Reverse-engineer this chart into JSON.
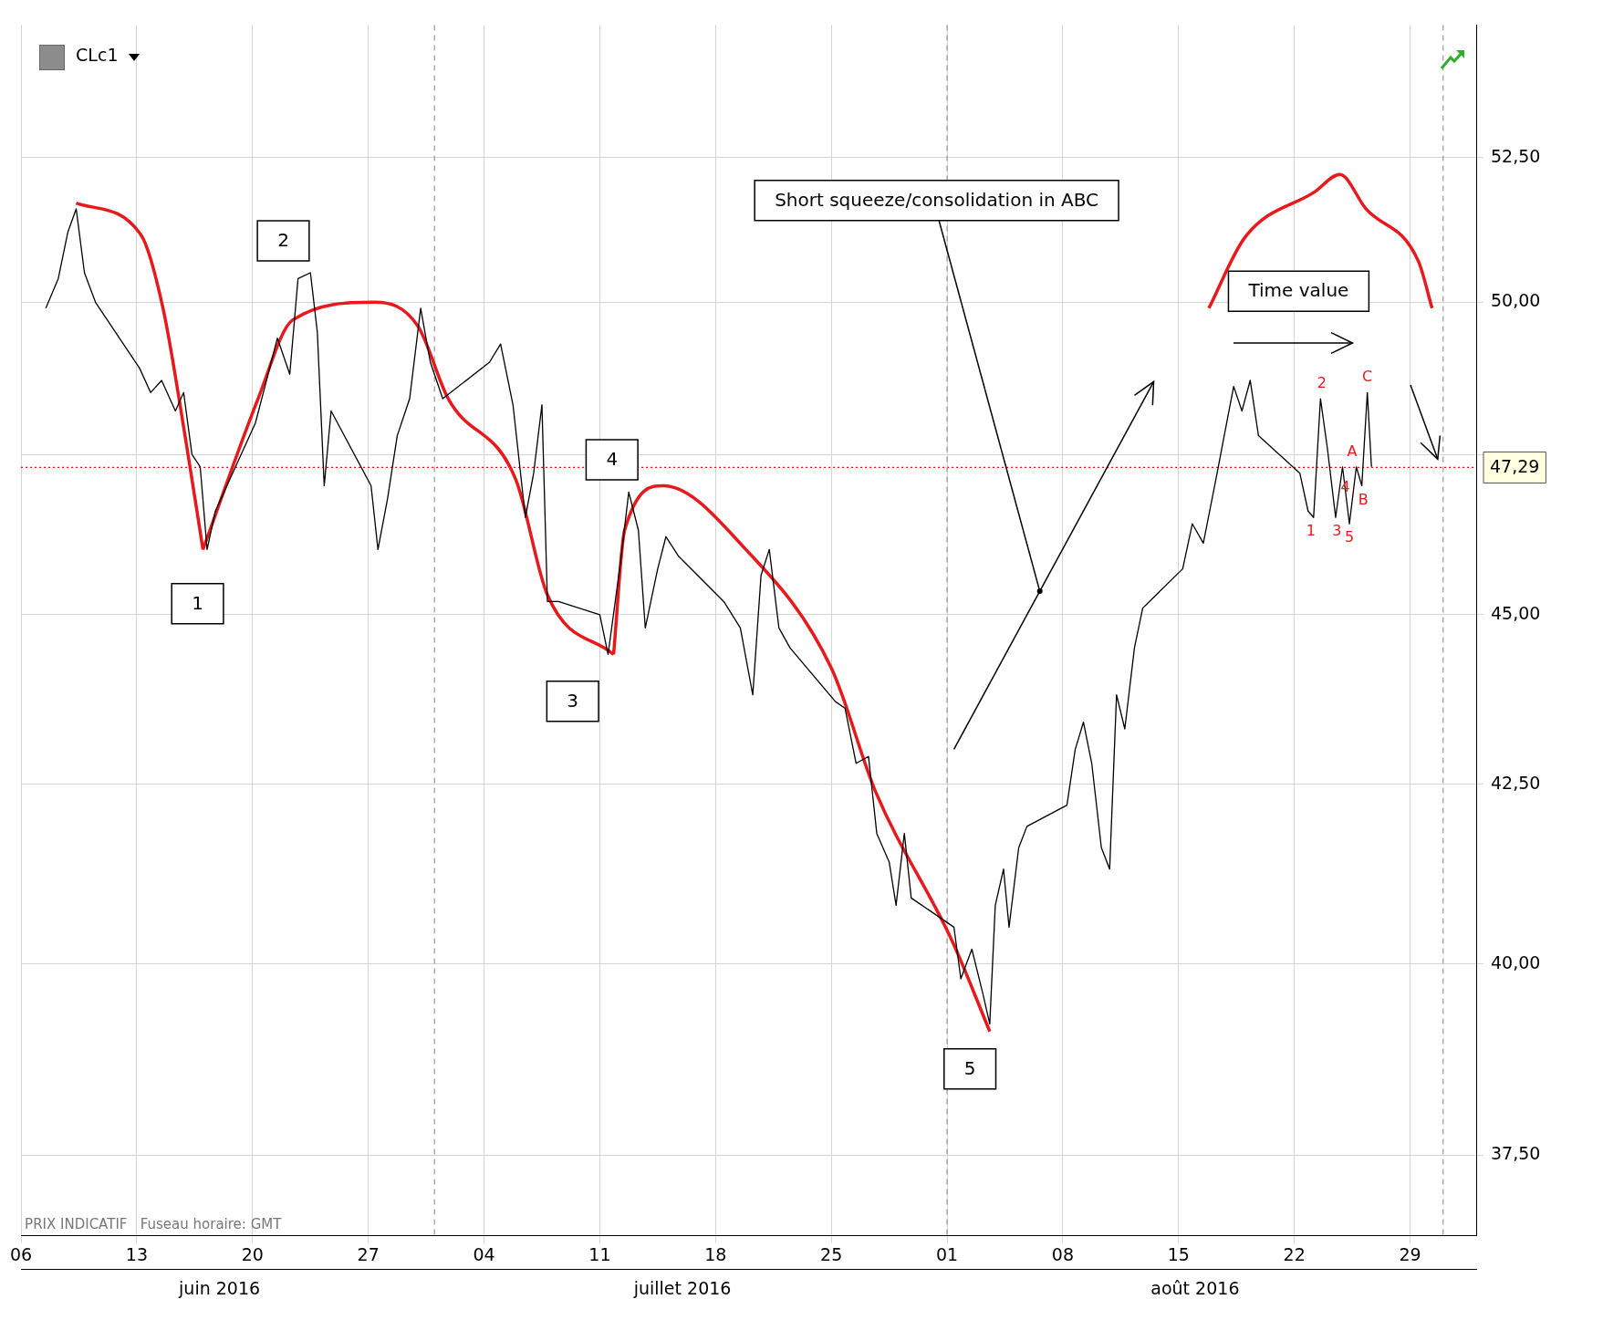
{
  "chart_data": {
    "type": "line",
    "title": "CLc1",
    "xlim": [
      "2016-06-06",
      "2016-09-02"
    ],
    "xticks": [
      {
        "value": "2016-06-06",
        "label": "06"
      },
      {
        "value": "2016-06-13",
        "label": "13"
      },
      {
        "value": "2016-06-20",
        "label": "20"
      },
      {
        "value": "2016-06-27",
        "label": "27"
      },
      {
        "value": "2016-07-04",
        "label": "04"
      },
      {
        "value": "2016-07-11",
        "label": "11"
      },
      {
        "value": "2016-07-18",
        "label": "18"
      },
      {
        "value": "2016-07-25",
        "label": "25"
      },
      {
        "value": "2016-08-01",
        "label": "01"
      },
      {
        "value": "2016-08-08",
        "label": "08"
      },
      {
        "value": "2016-08-15",
        "label": "15"
      },
      {
        "value": "2016-08-22",
        "label": "22"
      },
      {
        "value": "2016-08-29",
        "label": "29"
      }
    ],
    "x2lim": [
      "2016-06-06",
      "2016-09-02"
    ],
    "x2ticks": [
      {
        "value": "2016-06-18",
        "label": "juin 2016"
      },
      {
        "value": "2016-07-16",
        "label": "juillet 2016"
      },
      {
        "value": "2016-08-16",
        "label": "août 2016"
      }
    ],
    "ylim": [
      36.5,
      54.9
    ],
    "log": true,
    "yticks": [
      {
        "value": 37.5,
        "label": "37,50"
      },
      {
        "value": 40,
        "label": "40,00"
      },
      {
        "value": 42.5,
        "label": "42,50"
      },
      {
        "value": 45,
        "label": "45,00"
      },
      {
        "value": 47.5,
        "label": null
      },
      {
        "value": 50,
        "label": "50,00"
      },
      {
        "value": 52.5,
        "label": "52,50"
      }
    ],
    "grid": true,
    "legend": false,
    "marker": "none",
    "line_style": "solid",
    "series": [
      {
        "color": "#000000",
        "x": [
          "2016-06-07T12:00",
          "2016-06-08T06:00",
          "2016-06-08T20:00",
          "2016-06-09T08:00",
          "2016-06-09T20:00",
          "2016-06-10T12:00",
          "2016-06-13T04:00",
          "2016-06-13T20:00",
          "2016-06-14T12:00",
          "2016-06-15T08:00",
          "2016-06-15T20:00",
          "2016-06-16T08:00",
          "2016-06-16T20:00",
          "2016-06-17T06:00",
          "2016-06-17T18:00",
          "2016-06-20T04:00",
          "2016-06-20T18:00",
          "2016-06-21T12:00",
          "2016-06-22T06:00",
          "2016-06-22T18:00",
          "2016-06-23T12:00",
          "2016-06-23T22:00",
          "2016-06-24T08:00",
          "2016-06-24T18:00",
          "2016-06-27T04:00",
          "2016-06-27T14:00",
          "2016-06-28T04:00",
          "2016-06-28T18:00",
          "2016-06-29T12:00",
          "2016-06-30T04:00",
          "2016-06-30T18:00",
          "2016-07-01T12:00",
          "2016-07-04T08:00",
          "2016-07-05T00:00",
          "2016-07-05T18:00",
          "2016-07-06T12:00",
          "2016-07-07T00:00",
          "2016-07-07T12:00",
          "2016-07-07T20:00",
          "2016-07-08T12:00",
          "2016-07-11T00:00",
          "2016-07-11T12:00",
          "2016-07-12T06:00",
          "2016-07-12T18:00",
          "2016-07-13T08:00",
          "2016-07-13T18:00",
          "2016-07-14T12:00",
          "2016-07-15T00:00",
          "2016-07-15T18:00",
          "2016-07-18T12:00",
          "2016-07-19T12:00",
          "2016-07-20T06:00",
          "2016-07-20T18:00",
          "2016-07-21T06:00",
          "2016-07-21T20:00",
          "2016-07-22T12:00",
          "2016-07-25T06:00",
          "2016-07-25T20:00",
          "2016-07-26T12:00",
          "2016-07-27T06:00",
          "2016-07-27T18:00",
          "2016-07-28T12:00",
          "2016-07-28T22:00",
          "2016-07-29T10:00",
          "2016-07-29T20:00",
          "2016-08-01T10:00",
          "2016-08-01T20:00",
          "2016-08-02T12:00",
          "2016-08-03T04:00",
          "2016-08-03T14:00",
          "2016-08-03T22:00",
          "2016-08-04T10:00",
          "2016-08-04T18:00",
          "2016-08-05T08:00",
          "2016-08-05T20:00",
          "2016-08-08T06:00",
          "2016-08-08T18:00",
          "2016-08-09T06:00",
          "2016-08-09T18:00",
          "2016-08-10T08:00",
          "2016-08-10T20:00",
          "2016-08-11T06:00",
          "2016-08-11T18:00",
          "2016-08-12T08:00",
          "2016-08-12T20:00",
          "2016-08-15T06:00",
          "2016-08-15T20:00",
          "2016-08-16T12:00",
          "2016-08-17T08:00",
          "2016-08-17T20:00",
          "2016-08-18T08:00",
          "2016-08-18T20:00",
          "2016-08-19T08:00",
          "2016-08-19T20:00",
          "2016-08-22T08:00",
          "2016-08-22T20:00",
          "2016-08-23T04:00",
          "2016-08-23T14:00",
          "2016-08-24T00:00",
          "2016-08-24T12:00",
          "2016-08-24T22:00",
          "2016-08-25T08:00",
          "2016-08-25T18:00",
          "2016-08-26T02:00",
          "2016-08-26T10:00",
          "2016-08-26T16:00"
        ],
        "values": [
          49.9,
          50.4,
          51.2,
          51.6,
          50.5,
          50.0,
          48.9,
          48.5,
          48.7,
          48.2,
          48.5,
          47.5,
          47.3,
          46.0,
          46.6,
          48.0,
          48.6,
          49.4,
          48.8,
          50.4,
          50.5,
          49.5,
          47.0,
          48.2,
          47.0,
          46.0,
          46.8,
          47.8,
          48.4,
          49.9,
          49.0,
          48.4,
          49.0,
          49.3,
          48.3,
          46.5,
          47.2,
          48.3,
          45.2,
          45.2,
          45.0,
          44.4,
          45.8,
          46.9,
          46.3,
          44.8,
          45.7,
          46.2,
          45.9,
          45.2,
          44.8,
          43.8,
          45.6,
          46.0,
          44.8,
          44.5,
          43.7,
          43.6,
          42.8,
          42.9,
          41.8,
          41.4,
          40.8,
          41.8,
          40.9,
          40.5,
          39.8,
          40.2,
          39.6,
          39.2,
          40.8,
          41.3,
          40.5,
          41.6,
          41.9,
          42.2,
          43.0,
          43.4,
          42.8,
          41.6,
          41.3,
          43.8,
          43.3,
          44.5,
          45.1,
          45.7,
          46.4,
          46.1,
          47.2,
          47.9,
          48.6,
          48.2,
          48.7,
          47.8,
          47.2,
          46.6,
          46.5,
          48.4,
          47.6,
          46.5,
          47.3,
          46.4,
          47.3,
          47.0,
          48.5,
          47.3
        ]
      },
      {
        "color": "#e8191c",
        "x": [
          "2016-06-09T08:00",
          "2016-06-13T06:00",
          "2016-06-14T14:00",
          "2016-06-15T22:00",
          "2016-06-17T00:00"
        ],
        "values": [
          51.7,
          51.15,
          49.9,
          47.8,
          46.0
        ]
      },
      {
        "color": "#e8191c",
        "x": [
          "2016-06-17T00:00",
          "2016-06-20T08:00",
          "2016-06-22T10:00",
          "2016-06-27T10:00",
          "2016-06-30T00:00",
          "2016-07-01T20:00",
          "2016-07-05T22:00",
          "2016-07-07T20:00",
          "2016-07-11T20:00"
        ],
        "values": [
          46.0,
          48.4,
          49.7,
          50.0,
          49.6,
          48.4,
          47.1,
          45.3,
          44.4
        ]
      },
      {
        "color": "#e8191c",
        "x": [
          "2016-07-11T20:00",
          "2016-07-12T12:00",
          "2016-07-14T20:00",
          "2016-07-19T20:00",
          "2016-07-25T00:00",
          "2016-07-27T16:00",
          "2016-08-01T08:00",
          "2016-08-03T14:00"
        ],
        "values": [
          44.4,
          46.3,
          47.0,
          46.0,
          44.2,
          42.4,
          40.3,
          39.1
        ]
      },
      {
        "color": "#e8191c",
        "x": [
          "2016-08-16T20:00",
          "2016-08-19T00:00",
          "2016-08-23T06:00",
          "2016-08-24T18:00",
          "2016-08-26T08:00",
          "2016-08-29T12:00",
          "2016-08-30T08:00"
        ],
        "values": [
          49.9,
          51.1,
          51.9,
          52.2,
          51.6,
          50.7,
          49.9
        ]
      }
    ],
    "ref_lines": [
      {
        "axis": "y",
        "value": 47.29,
        "label": "47,29",
        "color": "#ff0000",
        "line_style": "dotted"
      },
      {
        "axis": "x",
        "value": "2016-07-01",
        "color": "#999999",
        "line_style": "dashed"
      },
      {
        "axis": "x",
        "value": "2016-08-01",
        "color": "#999999",
        "line_style": "dashed"
      },
      {
        "axis": "x",
        "value": "2016-08-31",
        "color": "#999999",
        "line_style": "dashed"
      }
    ],
    "annotations": [
      "1",
      "2",
      "3",
      "4",
      "5",
      "Short squeeze/consolidation in ABC",
      "Time value",
      "PRIX INDICATIF   Fuseau horaire: GMT",
      {
        "text": "1",
        "x": "2016-08-23T00:00",
        "y": 46.5
      },
      {
        "text": "2",
        "x": "2016-08-23T16:00",
        "y": 48.4
      },
      {
        "text": "3",
        "x": "2016-08-24T14:00",
        "y": 46.5
      },
      {
        "text": "4",
        "x": "2016-08-25T02:00",
        "y": 47.2
      },
      {
        "text": "5",
        "x": "2016-08-25T08:00",
        "y": 46.4
      },
      {
        "text": "A",
        "x": "2016-08-25T12:00",
        "y": 47.3
      },
      {
        "text": "B",
        "x": "2016-08-26T04:00",
        "y": 47.0
      },
      {
        "text": "C",
        "x": "2016-08-26T10:00",
        "y": 48.5
      }
    ]
  }
}
